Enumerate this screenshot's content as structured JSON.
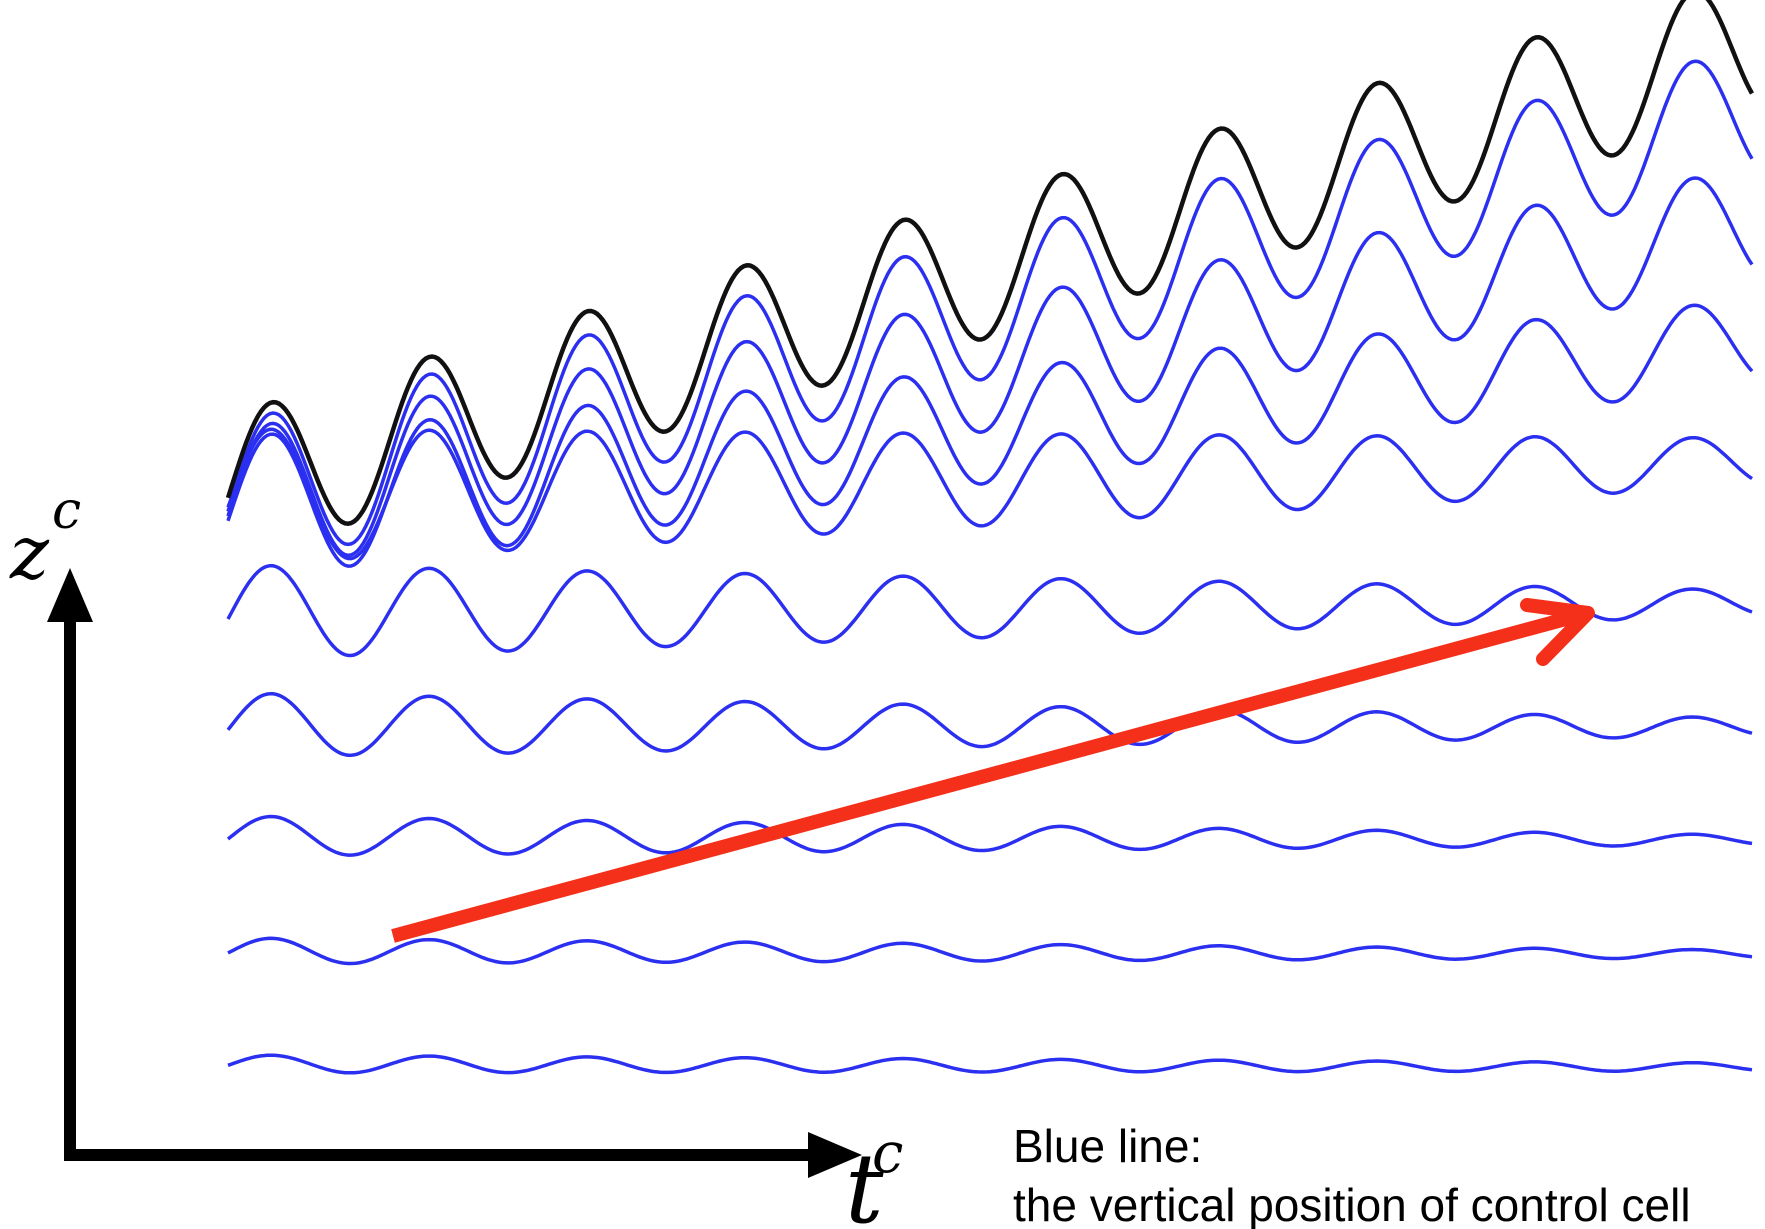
{
  "axes": {
    "y_label": "z",
    "y_superscript": "c",
    "x_label": "t",
    "x_superscript": "c"
  },
  "caption": {
    "line1": "Blue line:",
    "line2": "the vertical position of control cell"
  },
  "colors": {
    "axis": "#000000",
    "blue_waves": "#2b2ff0",
    "black_wave": "#111111",
    "red_arrow": "#f5301a"
  }
}
